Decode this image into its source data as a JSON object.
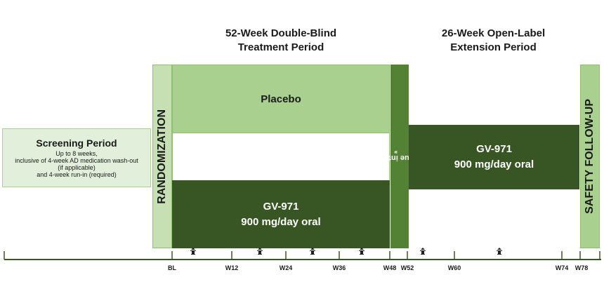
{
  "headings": {
    "double_blind": [
      "52-Week Double-Blind",
      "Treatment Period"
    ],
    "open_label": [
      "26-Week Open-Label",
      "Extension Period"
    ]
  },
  "screening": {
    "title": "Screening Period",
    "lines": [
      "Up to 8 weeks,",
      "inclusive of 4-week AD medication wash-out",
      "(if applicable)",
      "and 4-week run-in (required)"
    ]
  },
  "randomization": "RANDOMIZATION",
  "placebo": "Placebo",
  "treatment_arm": {
    "drug": "GV-971",
    "dose": "900 mg/day oral"
  },
  "continue_ole": "Continue into OLE",
  "continue_ole_sup": "a",
  "ole_arm": {
    "drug": "GV-971",
    "dose": "900 mg/day oral"
  },
  "safety_followup": "SAFETY FOLLOW-UP",
  "timeline": {
    "labels": [
      "BL",
      "W12",
      "W24",
      "W36",
      "W48",
      "W52",
      "W60",
      "W74",
      "W78"
    ]
  },
  "colors": {
    "light_green": "#a9d08e",
    "pale_green": "#c6e0b4",
    "dark_green": "#375623",
    "mid_green": "#548235",
    "screening_bg": "#e2efda",
    "axis": "#385723"
  },
  "icons": {
    "visit_marker": "visit-icon"
  }
}
